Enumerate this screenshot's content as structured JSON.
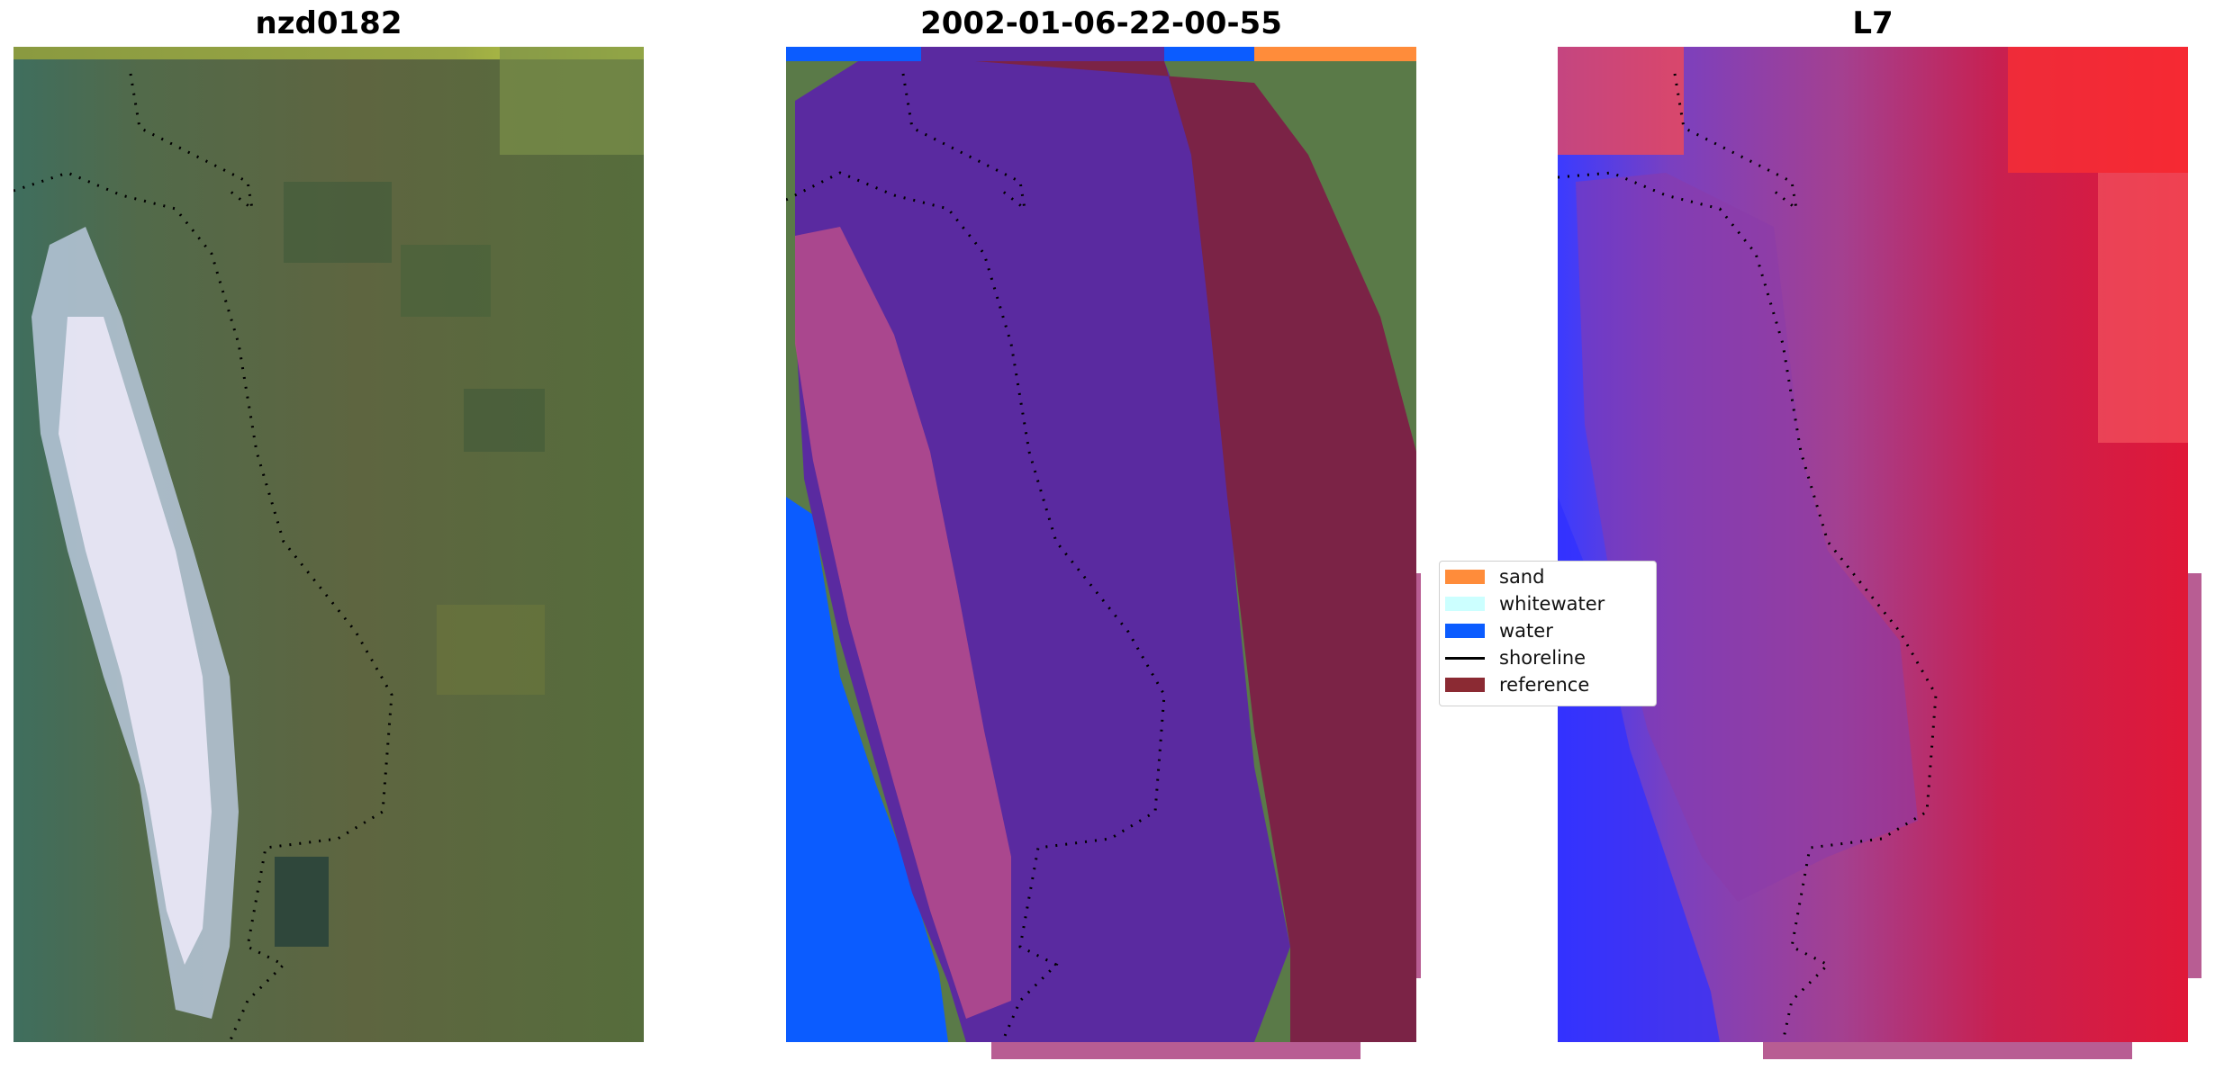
{
  "panels": [
    {
      "title": "nzd0182"
    },
    {
      "title": "2002-01-06-22-00-55"
    },
    {
      "title": "L7"
    }
  ],
  "legend": {
    "items": [
      {
        "label": "sand",
        "color": "#ff8c3a",
        "kind": "patch"
      },
      {
        "label": "whitewater",
        "color": "#ccffff",
        "kind": "patch"
      },
      {
        "label": "water",
        "color": "#0b5cff",
        "kind": "patch"
      },
      {
        "label": "shoreline",
        "color": "#000000",
        "kind": "line"
      },
      {
        "label": "reference",
        "color": "#8b2a33",
        "kind": "patch"
      }
    ]
  },
  "colors": {
    "sand": "#ff8c3a",
    "water": "#0b5cff",
    "classified_land": "#5a2aa0",
    "reference_overlay": "#7b2346",
    "whitewater": "#ccffff"
  }
}
